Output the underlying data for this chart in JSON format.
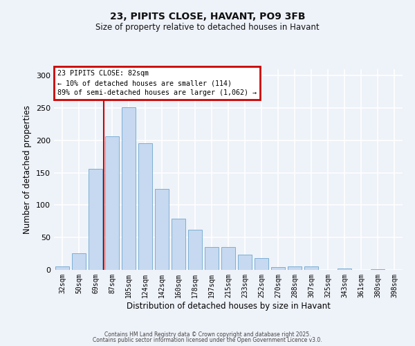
{
  "title": "23, PIPITS CLOSE, HAVANT, PO9 3FB",
  "subtitle": "Size of property relative to detached houses in Havant",
  "xlabel": "Distribution of detached houses by size in Havant",
  "ylabel": "Number of detached properties",
  "categories": [
    "32sqm",
    "50sqm",
    "69sqm",
    "87sqm",
    "105sqm",
    "124sqm",
    "142sqm",
    "160sqm",
    "178sqm",
    "197sqm",
    "215sqm",
    "233sqm",
    "252sqm",
    "270sqm",
    "288sqm",
    "307sqm",
    "325sqm",
    "343sqm",
    "361sqm",
    "380sqm",
    "398sqm"
  ],
  "bar_heights": [
    5,
    26,
    156,
    206,
    251,
    196,
    125,
    79,
    62,
    35,
    35,
    23,
    18,
    4,
    5,
    5,
    0,
    2,
    0,
    1,
    0
  ],
  "bar_color": "#c6d9f0",
  "bar_edge_color": "#7bafd4",
  "ylim": [
    0,
    310
  ],
  "yticks": [
    0,
    50,
    100,
    150,
    200,
    250,
    300
  ],
  "annotation_title": "23 PIPITS CLOSE: 82sqm",
  "annotation_line1": "← 10% of detached houses are smaller (114)",
  "annotation_line2": "89% of semi-detached houses are larger (1,062) →",
  "annotation_box_color": "#cc0000",
  "vline_color": "#cc0000",
  "vline_x": 2.5,
  "background_color": "#eef2f9",
  "grid_color": "#ffffff",
  "footer_line1": "Contains HM Land Registry data © Crown copyright and database right 2025.",
  "footer_line2": "Contains public sector information licensed under the Open Government Licence v3.0."
}
